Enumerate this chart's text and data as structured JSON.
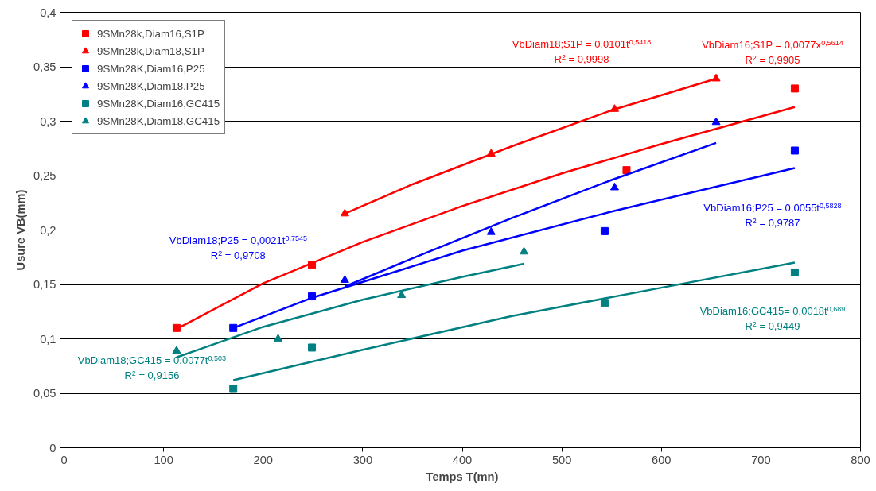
{
  "chart_data": {
    "type": "scatter",
    "xlabel": "Temps T(mn)",
    "ylabel": "Usure VB(mm)",
    "xlim": [
      0,
      800
    ],
    "xticks": [
      0,
      100,
      200,
      300,
      400,
      500,
      600,
      700,
      800
    ],
    "ylim": [
      0,
      0.4
    ],
    "yticks": [
      {
        "value": 0,
        "label": "0"
      },
      {
        "value": 0.05,
        "label": "0,05"
      },
      {
        "value": 0.1,
        "label": "0,1"
      },
      {
        "value": 0.15,
        "label": "0,15"
      },
      {
        "value": 0.2,
        "label": "0,2"
      },
      {
        "value": 0.25,
        "label": "0,25"
      },
      {
        "value": 0.3,
        "label": "0,3"
      },
      {
        "value": 0.35,
        "label": "0,35"
      },
      {
        "value": 0.4,
        "label": "0,4"
      }
    ],
    "grid": "y",
    "legend": "top left",
    "series": [
      {
        "name": "9SMn28k,Diam16,S1P",
        "color": "#ff0000",
        "marker": "square",
        "x": [
          113,
          249,
          565,
          734
        ],
        "values": [
          0.11,
          0.168,
          0.255,
          0.33
        ]
      },
      {
        "name": "9SMn28k,Diam18,S1P",
        "color": "#ff0000",
        "marker": "triangle",
        "x": [
          282,
          429,
          553,
          655
        ],
        "values": [
          0.215,
          0.27,
          0.311,
          0.339
        ]
      },
      {
        "name": "9SMn28K,Diam16,P25",
        "color": "#0000ff",
        "marker": "square",
        "x": [
          170,
          249,
          543,
          734
        ],
        "values": [
          0.11,
          0.139,
          0.199,
          0.273
        ]
      },
      {
        "name": "9SMn28K,Diam18,P25",
        "color": "#0000ff",
        "marker": "triangle",
        "x": [
          282,
          429,
          553,
          655
        ],
        "values": [
          0.154,
          0.198,
          0.239,
          0.299
        ]
      },
      {
        "name": "9SMn28K,Diam16,GC415",
        "color": "#008080",
        "marker": "square",
        "x": [
          170,
          249,
          543,
          734
        ],
        "values": [
          0.054,
          0.092,
          0.133,
          0.161
        ]
      },
      {
        "name": "9SMn28K,Diam18,GC415",
        "color": "#008080",
        "marker": "triangle",
        "x": [
          113,
          215,
          339,
          462
        ],
        "values": [
          0.089,
          0.1,
          0.14,
          0.18
        ]
      },
      {
        "type": "line",
        "color": "#ff0000",
        "marker": "none",
        "x": [
          113,
          200,
          300,
          400,
          500,
          600,
          734
        ],
        "values": [
          0.109,
          0.151,
          0.189,
          0.222,
          0.252,
          0.279,
          0.313
        ]
      },
      {
        "type": "line",
        "color": "#ff0000",
        "marker": "none",
        "x": [
          282,
          350,
          450,
          550,
          655
        ],
        "values": [
          0.215,
          0.242,
          0.277,
          0.31,
          0.339
        ]
      },
      {
        "type": "line",
        "color": "#0000ff",
        "marker": "none",
        "x": [
          170,
          250,
          400,
          550,
          734
        ],
        "values": [
          0.11,
          0.138,
          0.181,
          0.217,
          0.257
        ]
      },
      {
        "type": "line",
        "color": "#0000ff",
        "marker": "none",
        "x": [
          282,
          350,
          450,
          550,
          655
        ],
        "values": [
          0.148,
          0.174,
          0.211,
          0.246,
          0.28
        ]
      },
      {
        "type": "line",
        "color": "#008080",
        "marker": "none",
        "x": [
          170,
          300,
          450,
          600,
          734
        ],
        "values": [
          0.062,
          0.09,
          0.121,
          0.147,
          0.17
        ]
      },
      {
        "type": "line",
        "color": "#008080",
        "marker": "none",
        "x": [
          113,
          200,
          300,
          400,
          462
        ],
        "values": [
          0.083,
          0.111,
          0.136,
          0.157,
          0.169
        ]
      }
    ],
    "annotations": [
      "VbDiam18;S1P = 0,0101t$^{0,5418}$\nR$^{2}$ = 0,9998",
      "VbDiam16;S1P = 0,0077x$^{0,5614}$\nR$^{2}$ = 0,9905",
      "VbDiam16;P25 = 0,0055t$^{0,5828}$\nR$^{2}$ = 0,9787",
      "VbDiam18;P25 = 0,0021t$^{0,7545}$\nR$^{2}$ = 0,9708",
      "VbDiam16;GC415= 0,0018t$^{0,689}$\nR$^{2}$ = 0,9449",
      "VbDiam18;GC415 = 0,0077t$^{0,503}$\nR$^{2}$ = 0,9156"
    ]
  }
}
